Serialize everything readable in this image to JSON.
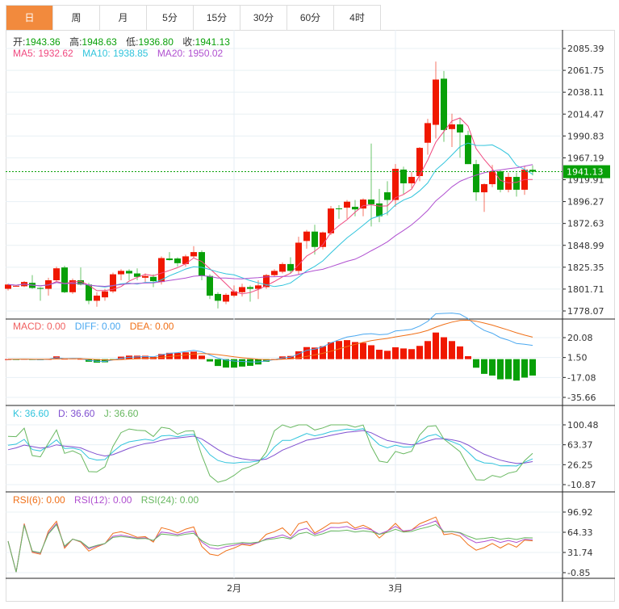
{
  "tabs": [
    {
      "label": "日",
      "active": true
    },
    {
      "label": "周"
    },
    {
      "label": "月"
    },
    {
      "label": "5分"
    },
    {
      "label": "15分"
    },
    {
      "label": "30分"
    },
    {
      "label": "60分"
    },
    {
      "label": "4时"
    }
  ],
  "ohlc_legend": {
    "open_label": "开:",
    "open": "1943.36",
    "high_label": "高:",
    "high": "1948.63",
    "low_label": "低:",
    "low": "1936.80",
    "close_label": "收:",
    "close": "1941.13"
  },
  "ma_legend": {
    "ma5": "MA5: 1932.62",
    "ma10": "MA10: 1938.85",
    "ma20": "MA20: 1950.02"
  },
  "macd_legend": {
    "macd": "MACD: 0.00",
    "diff": "DIFF: 0.00",
    "dea": "DEA: 0.00"
  },
  "kdj_legend": {
    "k": "K: 36.60",
    "d": "D: 36.60",
    "j": "J: 36.60"
  },
  "rsi_legend": {
    "rsi6": "RSI(6): 0.00",
    "rsi12": "RSI(12): 0.00",
    "rsi24": "RSI(24): 0.00"
  },
  "colors": {
    "up": "#f01800",
    "down": "#08a008",
    "ma5": "#f0487f",
    "ma10": "#30c4dc",
    "ma20": "#b050d0",
    "diff": "#4aa8f0",
    "dea": "#f07018",
    "k": "#30c4dc",
    "d": "#8050d0",
    "j": "#68b860",
    "rsi6": "#f07018",
    "rsi12": "#b050d0",
    "rsi24": "#68b860",
    "accent": "#f28a3d"
  },
  "chart_data": {
    "type": "candlestick",
    "last_price": "1941.13",
    "price_ticks": [
      "2085.39",
      "2061.75",
      "2038.11",
      "2014.47",
      "1990.83",
      "1967.19",
      "1941.13",
      "1919.91",
      "1896.27",
      "1872.63",
      "1848.99",
      "1825.35",
      "1801.71",
      "1778.07"
    ],
    "price_range": [
      1778.07,
      2085.39
    ],
    "macd_ticks": [
      "20.08",
      "1.50",
      "-17.08",
      "-35.66"
    ],
    "macd_range": [
      -35.66,
      20.08
    ],
    "kdj_ticks": [
      "100.48",
      "63.37",
      "26.25",
      "-10.87"
    ],
    "kdj_range": [
      -10.87,
      100.48
    ],
    "rsi_ticks": [
      "96.92",
      "64.33",
      "31.74",
      "-0.85"
    ],
    "rsi_range": [
      -0.85,
      96.92
    ],
    "x_labels": [
      {
        "label": "2月",
        "index": 28
      },
      {
        "label": "3月",
        "index": 48
      }
    ],
    "candles_ochl_note": "[open, close, high, low]",
    "candles": [
      [
        1804,
        1809,
        1810,
        1802
      ],
      [
        1807,
        1807.5,
        1808,
        1807
      ],
      [
        1807,
        1812,
        1813,
        1806
      ],
      [
        1811,
        1805,
        1820,
        1804
      ],
      [
        1805,
        1804,
        1806,
        1790
      ],
      [
        1804,
        1814,
        1817,
        1796
      ],
      [
        1814,
        1828,
        1830,
        1813
      ],
      [
        1829,
        1800,
        1831,
        1799
      ],
      [
        1800,
        1814,
        1816,
        1798
      ],
      [
        1814,
        1809,
        1829,
        1808
      ],
      [
        1809,
        1790,
        1811,
        1786
      ],
      [
        1790,
        1796,
        1800,
        1783
      ],
      [
        1794,
        1801,
        1804,
        1790
      ],
      [
        1801,
        1821,
        1823,
        1799
      ],
      [
        1821,
        1825,
        1827,
        1814
      ],
      [
        1825,
        1822,
        1827,
        1814
      ],
      [
        1822,
        1818,
        1828,
        1814
      ],
      [
        1817,
        1819,
        1822,
        1812
      ],
      [
        1818,
        1813,
        1821,
        1806
      ],
      [
        1812,
        1840,
        1842,
        1809
      ],
      [
        1839.5,
        1837.6,
        1847,
        1837
      ],
      [
        1839.5,
        1834,
        1841,
        1830
      ],
      [
        1833,
        1842,
        1844,
        1830
      ],
      [
        1842,
        1847,
        1854,
        1839.5
      ],
      [
        1847,
        1819,
        1849,
        1814
      ],
      [
        1819,
        1796,
        1821,
        1792
      ],
      [
        1798,
        1790,
        1800,
        1781
      ],
      [
        1789,
        1797,
        1799,
        1786
      ],
      [
        1796,
        1801,
        1808,
        1794
      ],
      [
        1800,
        1806,
        1810,
        1795
      ],
      [
        1806,
        1804,
        1808,
        1789
      ],
      [
        1804,
        1808,
        1814,
        1792
      ],
      [
        1806,
        1820,
        1821.5,
        1804
      ],
      [
        1820,
        1825,
        1827,
        1818
      ],
      [
        1824,
        1833,
        1835,
        1822
      ],
      [
        1833,
        1825,
        1841,
        1822
      ],
      [
        1825,
        1858,
        1865,
        1821
      ],
      [
        1860,
        1871,
        1873,
        1851
      ],
      [
        1871,
        1853,
        1879,
        1844
      ],
      [
        1853,
        1870,
        1871,
        1850
      ],
      [
        1869,
        1898,
        1901,
        1867
      ],
      [
        1898.1,
        1897.5,
        1902,
        1886
      ],
      [
        1899,
        1906,
        1908,
        1886
      ],
      [
        1900,
        1897,
        1908,
        1889
      ],
      [
        1898,
        1908.5,
        1910,
        1889
      ],
      [
        1908.5,
        1903,
        1974,
        1877
      ],
      [
        1904,
        1889,
        1921,
        1882
      ],
      [
        1917,
        1908,
        1930,
        1890
      ],
      [
        1908,
        1944.5,
        1950,
        1900
      ],
      [
        1943.6,
        1927.5,
        1947,
        1915
      ],
      [
        1927.5,
        1935,
        1941,
        1922
      ],
      [
        1936,
        1969,
        1970,
        1930
      ],
      [
        1975,
        1998,
        2003,
        1961
      ],
      [
        1996,
        2049,
        2070,
        1980
      ],
      [
        2050,
        1990,
        2059,
        1976
      ],
      [
        1991,
        1996.5,
        2009,
        1970
      ],
      [
        1996.5,
        1987,
        2004,
        1957.5
      ],
      [
        1984,
        1950,
        1989,
        1950
      ],
      [
        1950,
        1917,
        1955,
        1907
      ],
      [
        1917,
        1926.5,
        1927.5,
        1894
      ],
      [
        1926.5,
        1941.6,
        1949,
        1923
      ],
      [
        1941.6,
        1920,
        1943.5,
        1917
      ],
      [
        1920,
        1935,
        1940,
        1917
      ],
      [
        1935,
        1920,
        1940,
        1912
      ],
      [
        1920,
        1943.5,
        1948,
        1914
      ],
      [
        1943.36,
        1941.13,
        1948.63,
        1936.8
      ]
    ]
  }
}
